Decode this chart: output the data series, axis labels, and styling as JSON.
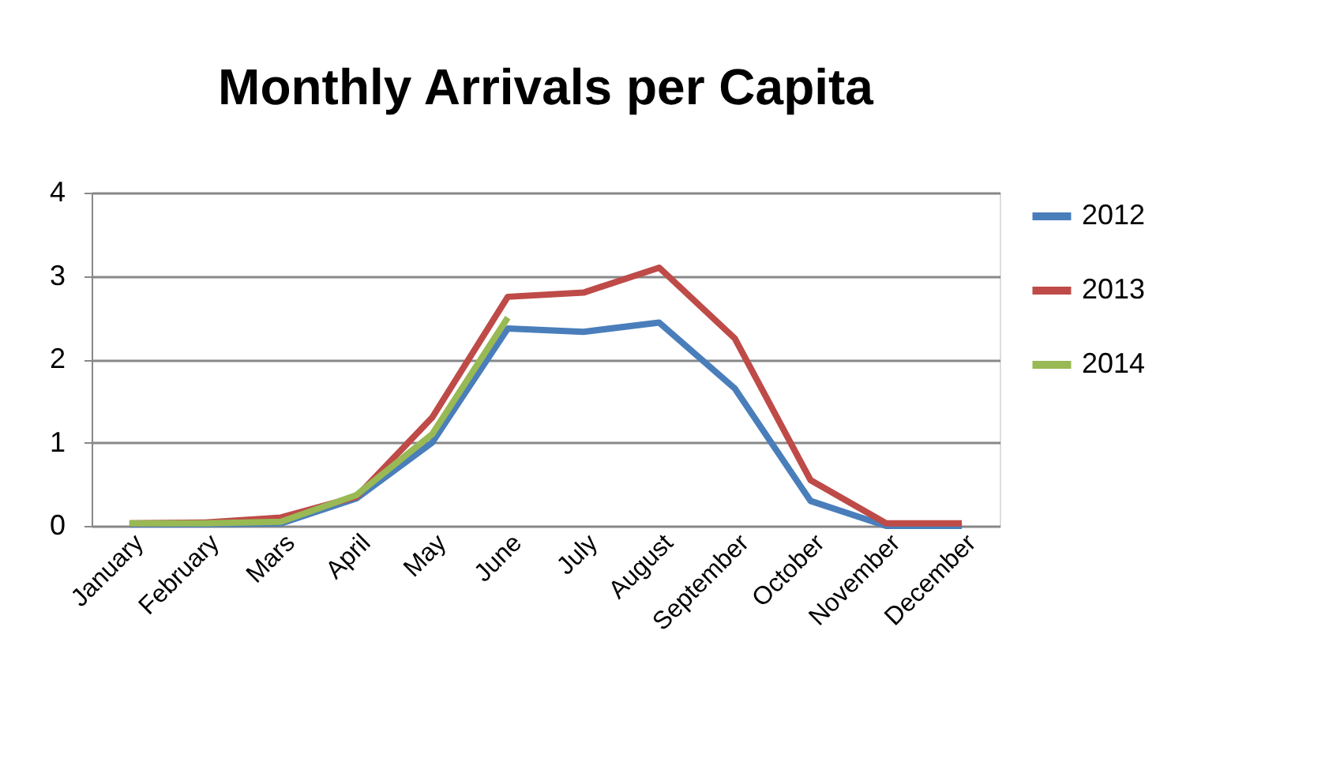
{
  "chart_data": {
    "type": "line",
    "title": "Monthly Arrivals per Capita",
    "categories": [
      "January",
      "February",
      "Mars",
      "April",
      "May",
      "June",
      "July",
      "August",
      "September",
      "October",
      "November",
      "December"
    ],
    "series": [
      {
        "name": "2012",
        "color": "#4a7ebb",
        "values": [
          0.02,
          0.02,
          0.03,
          0.33,
          1.0,
          2.37,
          2.33,
          2.44,
          1.65,
          0.3,
          0.0,
          0.0
        ]
      },
      {
        "name": "2013",
        "color": "#be4b48",
        "values": [
          0.03,
          0.04,
          0.1,
          0.35,
          1.3,
          2.75,
          2.8,
          3.1,
          2.25,
          0.55,
          0.03,
          0.03
        ]
      },
      {
        "name": "2014",
        "color": "#98b954",
        "values": [
          0.03,
          0.03,
          0.05,
          0.37,
          1.1,
          2.5,
          null,
          null,
          null,
          null,
          null,
          null
        ]
      }
    ],
    "ylim": [
      0,
      4
    ],
    "yticks": [
      0,
      1,
      2,
      3,
      4
    ],
    "grid": "y",
    "legend": "right",
    "marker": "none",
    "line_style": "solid"
  }
}
